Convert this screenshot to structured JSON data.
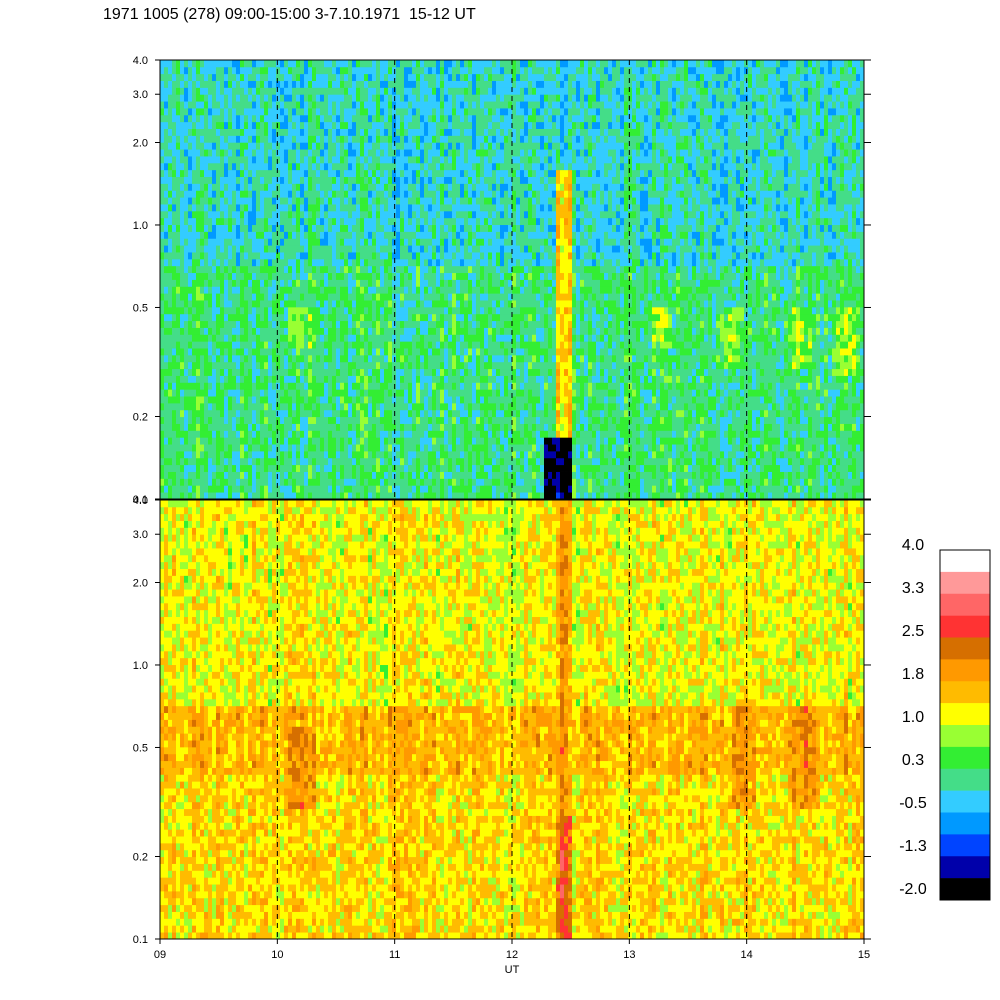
{
  "title": "1971 1005 (278) 09:00-15:00 3-7.10.1971  15-12 UT",
  "chart_data": [
    {
      "type": "heatmap",
      "panel": "upper",
      "x_range": [
        9,
        15
      ],
      "y_scale": "log",
      "y_range": [
        0.1,
        4.0
      ],
      "y_ticks": [
        "0.1",
        "0.2",
        "0.5",
        "1.0",
        "2.0",
        "3.0",
        "4.0"
      ],
      "y_tick_values": [
        0.1,
        0.2,
        0.5,
        1.0,
        2.0,
        3.0,
        4.0
      ],
      "x_gridlines": [
        10,
        11,
        12,
        13,
        14
      ],
      "bands": [
        {
          "y_from": 0.1,
          "y_to": 0.7,
          "level": 0.3
        },
        {
          "y_from": 0.7,
          "y_to": 4.0,
          "level": 0.0
        }
      ],
      "features": [
        {
          "x": 12.45,
          "y_from": 0.1,
          "y_to": 1.6,
          "level": 1.8
        },
        {
          "x": 12.38,
          "y_from": 0.1,
          "y_to": 0.17,
          "level": -1.6
        },
        {
          "x": 10.2,
          "y_from": 0.35,
          "y_to": 0.5,
          "level": 1.0
        },
        {
          "x": 13.25,
          "y_from": 0.38,
          "y_to": 0.5,
          "level": 1.0
        },
        {
          "x": 14.45,
          "y_from": 0.3,
          "y_to": 0.5,
          "level": 1.0
        },
        {
          "x": 14.85,
          "y_from": 0.28,
          "y_to": 0.5,
          "level": 1.0
        },
        {
          "x": 13.85,
          "y_from": 0.3,
          "y_to": 0.5,
          "level": 1.0
        }
      ]
    },
    {
      "type": "heatmap",
      "panel": "lower",
      "x_range": [
        9,
        15
      ],
      "y_scale": "log",
      "y_range": [
        0.1,
        4.0
      ],
      "y_ticks": [
        "0.1",
        "0.2",
        "0.5",
        "1.0",
        "2.0",
        "3.0",
        "4.0"
      ],
      "y_tick_values": [
        0.1,
        0.2,
        0.5,
        1.0,
        2.0,
        3.0,
        4.0
      ],
      "x_ticks": [
        "09",
        "10",
        "11",
        "12",
        "13",
        "14",
        "15"
      ],
      "x_tick_values": [
        9,
        10,
        11,
        12,
        13,
        14,
        15
      ],
      "x_gridlines": [
        10,
        11,
        12,
        13,
        14
      ],
      "xlabel": "UT",
      "bands": [
        {
          "y_from": 0.1,
          "y_to": 0.4,
          "level": 1.6
        },
        {
          "y_from": 0.4,
          "y_to": 0.7,
          "level": 1.9
        },
        {
          "y_from": 0.7,
          "y_to": 4.0,
          "level": 1.4
        }
      ],
      "features": [
        {
          "x": 12.45,
          "y_from": 0.1,
          "y_to": 0.28,
          "level": 2.8
        },
        {
          "x": 12.45,
          "y_from": 0.28,
          "y_to": 4.0,
          "level": 2.2
        },
        {
          "x": 10.2,
          "y_from": 0.3,
          "y_to": 0.6,
          "level": 2.3
        },
        {
          "x": 13.95,
          "y_from": 0.3,
          "y_to": 0.7,
          "level": 2.3
        },
        {
          "x": 14.5,
          "y_from": 0.3,
          "y_to": 0.7,
          "level": 2.4
        }
      ]
    }
  ],
  "colorbar": {
    "labels": [
      "4.0",
      "3.3",
      "2.5",
      "1.8",
      "1.0",
      "0.3",
      "-0.5",
      "-1.3",
      "-2.0"
    ],
    "colors": [
      "#ffffff",
      "#ff9999",
      "#ff6666",
      "#ff3333",
      "#d66f00",
      "#ff9900",
      "#ffbb00",
      "#ffff00",
      "#99ff33",
      "#33ee33",
      "#44dd88",
      "#33ccff",
      "#0099ff",
      "#0044ff",
      "#0000aa",
      "#000000"
    ]
  }
}
